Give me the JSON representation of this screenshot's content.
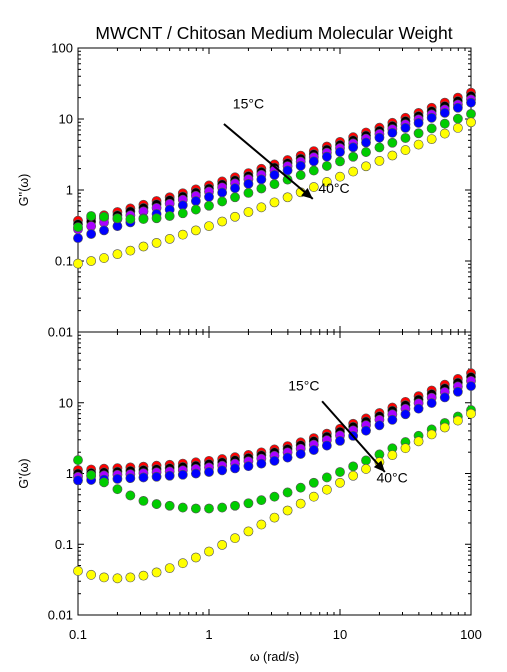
{
  "title": "MWCNT / Chitosan Medium Molecular Weight",
  "chart_data": [
    {
      "type": "scatter",
      "panel": "top",
      "ylabel": "G''(ω)",
      "xscale": "log",
      "yscale": "log",
      "xlim": [
        0.1,
        100
      ],
      "ylim": [
        0.01,
        100
      ],
      "yticks": [
        "0.01",
        "0.1",
        "1",
        "10",
        "100"
      ],
      "annotations": [
        {
          "text": "15°C",
          "x": 2.0,
          "y": 14
        },
        {
          "text": "40°C",
          "x": 9.0,
          "y": 0.9
        }
      ],
      "arrow": {
        "from": [
          1.3,
          8.5
        ],
        "to": [
          6.2,
          0.75
        ]
      },
      "x": [
        0.1,
        0.126,
        0.158,
        0.2,
        0.251,
        0.316,
        0.398,
        0.501,
        0.631,
        0.794,
        1.0,
        1.26,
        1.58,
        2.0,
        2.51,
        3.16,
        3.98,
        5.01,
        6.31,
        7.94,
        10.0,
        12.6,
        15.8,
        20.0,
        25.1,
        31.6,
        39.8,
        50.1,
        63.1,
        79.4,
        100
      ],
      "series": [
        {
          "color": "#ff0000",
          "values": [
            0.37,
            0.4,
            0.44,
            0.49,
            0.55,
            0.62,
            0.7,
            0.79,
            0.9,
            1.02,
            1.16,
            1.32,
            1.51,
            1.73,
            1.99,
            2.29,
            2.64,
            3.05,
            3.53,
            4.1,
            4.76,
            5.54,
            6.46,
            7.55,
            8.84,
            10.4,
            12.2,
            14.4,
            17.0,
            20.0,
            23.5
          ]
        },
        {
          "color": "#000000",
          "values": [
            0.33,
            0.36,
            0.4,
            0.44,
            0.5,
            0.56,
            0.63,
            0.72,
            0.81,
            0.92,
            1.05,
            1.2,
            1.37,
            1.57,
            1.8,
            2.07,
            2.39,
            2.76,
            3.2,
            3.71,
            4.31,
            5.01,
            5.84,
            6.82,
            7.98,
            9.35,
            11.0,
            12.9,
            15.2,
            17.9,
            21.1
          ]
        },
        {
          "color": "#aa00ff",
          "values": [
            0.28,
            0.31,
            0.35,
            0.39,
            0.44,
            0.5,
            0.56,
            0.64,
            0.73,
            0.83,
            0.95,
            1.09,
            1.24,
            1.42,
            1.64,
            1.88,
            2.17,
            2.51,
            2.9,
            3.36,
            3.9,
            4.53,
            5.28,
            6.16,
            7.19,
            8.42,
            9.87,
            11.6,
            13.6,
            16.0,
            18.9
          ]
        },
        {
          "color": "#0000ff",
          "values": [
            0.21,
            0.24,
            0.27,
            0.31,
            0.35,
            0.4,
            0.46,
            0.53,
            0.61,
            0.7,
            0.8,
            0.92,
            1.06,
            1.22,
            1.41,
            1.63,
            1.89,
            2.19,
            2.54,
            2.95,
            3.43,
            4.0,
            4.67,
            5.46,
            6.39,
            7.5,
            8.81,
            10.4,
            12.2,
            14.4,
            17.0
          ]
        },
        {
          "color": "#00cc00",
          "values": [
            0.3,
            0.43,
            0.42,
            0.4,
            0.39,
            0.39,
            0.4,
            0.43,
            0.47,
            0.53,
            0.6,
            0.69,
            0.79,
            0.91,
            1.05,
            1.21,
            1.4,
            1.62,
            1.88,
            2.18,
            2.53,
            2.94,
            3.42,
            3.98,
            4.63,
            5.4,
            6.3,
            7.36,
            8.6,
            10.1,
            11.8
          ]
        },
        {
          "color": "#ffff00",
          "values": [
            0.092,
            0.1,
            0.11,
            0.125,
            0.14,
            0.16,
            0.18,
            0.205,
            0.235,
            0.27,
            0.31,
            0.36,
            0.42,
            0.49,
            0.57,
            0.67,
            0.79,
            0.93,
            1.1,
            1.3,
            1.54,
            1.82,
            2.16,
            2.57,
            3.06,
            3.65,
            4.36,
            5.21,
            6.24,
            7.49,
            9.0
          ]
        }
      ]
    },
    {
      "type": "scatter",
      "panel": "bottom",
      "xlabel": "ω (rad/s)",
      "ylabel": "G'(ω)",
      "xscale": "log",
      "yscale": "log",
      "xlim": [
        0.1,
        100
      ],
      "ylim": [
        0.01,
        100
      ],
      "xticks": [
        "0.1",
        "1",
        "10",
        "100"
      ],
      "yticks": [
        "0.01",
        "0.1",
        "1",
        "10"
      ],
      "annotations": [
        {
          "text": "15°C",
          "x": 5.3,
          "y": 15
        },
        {
          "text": "40°C",
          "x": 25,
          "y": 0.75
        }
      ],
      "arrow": {
        "from": [
          7.3,
          10.5
        ],
        "to": [
          22,
          1.05
        ]
      },
      "x": [
        0.1,
        0.126,
        0.158,
        0.2,
        0.251,
        0.316,
        0.398,
        0.501,
        0.631,
        0.794,
        1.0,
        1.26,
        1.58,
        2.0,
        2.51,
        3.16,
        3.98,
        5.01,
        6.31,
        7.94,
        10.0,
        12.6,
        15.8,
        20.0,
        25.1,
        31.6,
        39.8,
        50.1,
        63.1,
        79.4,
        100
      ],
      "series": [
        {
          "color": "#ff0000",
          "values": [
            1.12,
            1.14,
            1.17,
            1.19,
            1.22,
            1.25,
            1.29,
            1.33,
            1.38,
            1.44,
            1.51,
            1.6,
            1.7,
            1.83,
            1.99,
            2.19,
            2.44,
            2.76,
            3.16,
            3.66,
            4.28,
            5.05,
            6.0,
            7.16,
            8.56,
            10.3,
            12.4,
            14.9,
            18.0,
            21.7,
            26.2
          ]
        },
        {
          "color": "#000000",
          "values": [
            1.0,
            1.02,
            1.04,
            1.06,
            1.09,
            1.12,
            1.15,
            1.19,
            1.24,
            1.29,
            1.36,
            1.44,
            1.54,
            1.66,
            1.81,
            1.99,
            2.22,
            2.51,
            2.87,
            3.32,
            3.88,
            4.57,
            5.42,
            6.46,
            7.72,
            9.25,
            11.1,
            13.3,
            16.0,
            19.2,
            23.1
          ]
        },
        {
          "color": "#aa00ff",
          "values": [
            0.9,
            0.92,
            0.94,
            0.96,
            0.98,
            1.01,
            1.04,
            1.07,
            1.11,
            1.16,
            1.22,
            1.29,
            1.38,
            1.49,
            1.62,
            1.78,
            1.99,
            2.24,
            2.56,
            2.96,
            3.46,
            4.07,
            4.82,
            5.74,
            6.86,
            8.21,
            9.84,
            11.8,
            14.2,
            17.0,
            20.4
          ]
        },
        {
          "color": "#0000ff",
          "values": [
            0.8,
            0.81,
            0.82,
            0.84,
            0.86,
            0.88,
            0.9,
            0.93,
            0.96,
            1.0,
            1.05,
            1.11,
            1.18,
            1.27,
            1.38,
            1.51,
            1.68,
            1.89,
            2.15,
            2.48,
            2.89,
            3.4,
            4.03,
            4.8,
            5.74,
            6.88,
            8.25,
            9.91,
            11.9,
            14.3,
            17.2
          ]
        },
        {
          "color": "#00cc00",
          "values": [
            1.55,
            0.95,
            0.75,
            0.6,
            0.49,
            0.41,
            0.37,
            0.35,
            0.33,
            0.32,
            0.32,
            0.33,
            0.35,
            0.38,
            0.42,
            0.47,
            0.54,
            0.63,
            0.74,
            0.88,
            1.05,
            1.26,
            1.53,
            1.86,
            2.27,
            2.78,
            3.41,
            4.2,
            5.17,
            6.38,
            7.88
          ]
        },
        {
          "color": "#ffff00",
          "values": [
            0.042,
            0.037,
            0.034,
            0.033,
            0.034,
            0.036,
            0.04,
            0.046,
            0.054,
            0.065,
            0.079,
            0.098,
            0.122,
            0.152,
            0.19,
            0.238,
            0.3,
            0.375,
            0.47,
            0.59,
            0.74,
            0.93,
            1.16,
            1.45,
            1.82,
            2.28,
            2.85,
            3.57,
            4.47,
            5.6,
            7.0
          ]
        }
      ]
    }
  ]
}
